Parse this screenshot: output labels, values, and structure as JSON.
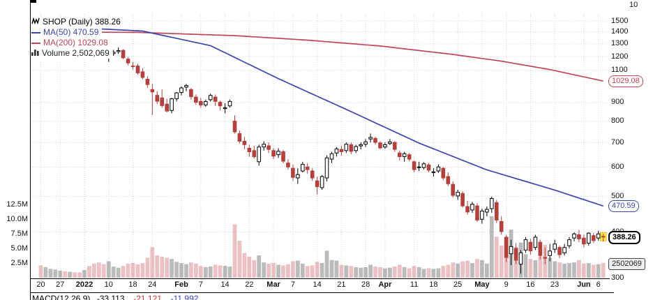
{
  "panel": {
    "top_axis_label": "10"
  },
  "legend": {
    "title": "SHOP (Daily) 388.26",
    "ma50_label": "MA(50) 470.59",
    "ma200_label": "MA(200) 1029.08",
    "volume_label": "Volume 2,502,069"
  },
  "price_labels": {
    "ma200": "1029.08",
    "ma50": "470.59",
    "last": "388.26",
    "volume": "2502069"
  },
  "macd": {
    "label": "MACD(12,26,9)",
    "value1": "-33.113,",
    "value2": "-21.121,",
    "value3": "-11.992"
  },
  "colors": {
    "ma50": "#3a45b0",
    "ma200": "#c0455a",
    "candle_down": "#b4403e",
    "candle_up_fill": "#ffffff",
    "candle_stroke": "#000000",
    "vol_up": "rgba(105,105,105,0.45)",
    "vol_down": "rgba(205,92,105,0.38)",
    "grid": "#d4d4d4",
    "highlight": "#ffe941",
    "macd_v2": "#cc3333",
    "macd_v3": "#3344cc"
  },
  "chart_data": {
    "type": "candlestick",
    "title": "SHOP (Daily) 388.26",
    "symbol": "SHOP",
    "timeframe": "Daily",
    "last_close": 388.26,
    "ma50_value": 470.59,
    "ma200_value": 1029.08,
    "current_volume": 2502069,
    "volume_in_millions": true,
    "y_axis": {
      "scale": "log",
      "ticks": [
        1500,
        1400,
        1300,
        1200,
        1100,
        900,
        800,
        700,
        600,
        500,
        400,
        300
      ]
    },
    "volume_axis": {
      "ticks": [
        {
          "v": 2.5,
          "label": "2.5M"
        },
        {
          "v": 5,
          "label": "5.0M"
        },
        {
          "v": 7.5,
          "label": "7.5M"
        },
        {
          "v": 10,
          "label": "10.0M"
        },
        {
          "v": 12.5,
          "label": "12.5M"
        }
      ]
    },
    "x_ticks": [
      {
        "i": 0,
        "label": "20"
      },
      {
        "i": 4,
        "label": "27"
      },
      {
        "i": 9,
        "label": "2022",
        "bold": true
      },
      {
        "i": 14,
        "label": "10"
      },
      {
        "i": 19,
        "label": "18"
      },
      {
        "i": 23,
        "label": "24"
      },
      {
        "i": 29,
        "label": "Feb",
        "bold": true
      },
      {
        "i": 33,
        "label": "7"
      },
      {
        "i": 38,
        "label": "14"
      },
      {
        "i": 43,
        "label": "22"
      },
      {
        "i": 48,
        "label": "Mar",
        "bold": true
      },
      {
        "i": 52,
        "label": "7"
      },
      {
        "i": 57,
        "label": "14"
      },
      {
        "i": 62,
        "label": "21"
      },
      {
        "i": 67,
        "label": "28"
      },
      {
        "i": 71,
        "label": "Apr",
        "bold": true
      },
      {
        "i": 77,
        "label": "11"
      },
      {
        "i": 81,
        "label": "18"
      },
      {
        "i": 86,
        "label": "25"
      },
      {
        "i": 91,
        "label": "May",
        "bold": true
      },
      {
        "i": 96,
        "label": "9"
      },
      {
        "i": 101,
        "label": "16"
      },
      {
        "i": 106,
        "label": "23"
      },
      {
        "i": 112,
        "label": "Jun",
        "bold": true
      },
      {
        "i": 115,
        "label": "6"
      }
    ],
    "candles": [
      [
        "12/20",
        1305,
        1322,
        1256,
        1292,
        2.1
      ],
      [
        "12/21",
        1296,
        1346,
        1290,
        1338,
        1.8
      ],
      [
        "12/22",
        1340,
        1376,
        1331,
        1368,
        1.5
      ],
      [
        "12/23",
        1370,
        1401,
        1356,
        1393,
        1.4
      ],
      [
        "12/27",
        1396,
        1431,
        1386,
        1416,
        1.2
      ],
      [
        "12/28",
        1418,
        1426,
        1381,
        1392,
        1.1
      ],
      [
        "12/29",
        1392,
        1411,
        1378,
        1401,
        1.0
      ],
      [
        "12/30",
        1401,
        1413,
        1386,
        1396,
        0.9
      ],
      [
        "12/31",
        1396,
        1401,
        1371,
        1377,
        0.9
      ],
      [
        "1/3",
        1382,
        1401,
        1351,
        1383,
        1.3
      ],
      [
        "1/4",
        1386,
        1391,
        1311,
        1346,
        2.0
      ],
      [
        "1/5",
        1340,
        1356,
        1266,
        1272,
        2.4
      ],
      [
        "1/6",
        1261,
        1286,
        1226,
        1251,
        2.6
      ],
      [
        "1/7",
        1256,
        1271,
        1196,
        1211,
        2.3
      ],
      [
        "1/10",
        1196,
        1231,
        1161,
        1223,
        2.8
      ],
      [
        "1/11",
        1223,
        1251,
        1206,
        1233,
        1.9
      ],
      [
        "1/12",
        1238,
        1271,
        1221,
        1246,
        1.7
      ],
      [
        "1/13",
        1248,
        1256,
        1181,
        1191,
        2.0
      ],
      [
        "1/14",
        1181,
        1196,
        1136,
        1153,
        2.4
      ],
      [
        "1/18",
        1131,
        1161,
        1106,
        1126,
        2.5
      ],
      [
        "1/19",
        1131,
        1146,
        1071,
        1083,
        2.3
      ],
      [
        "1/20",
        1091,
        1116,
        1041,
        1053,
        2.5
      ],
      [
        "1/21",
        1041,
        1061,
        986,
        1007,
        3.4
      ],
      [
        "1/24",
        976,
        1011,
        831,
        961,
        5.2
      ],
      [
        "1/25",
        941,
        966,
        891,
        907,
        3.8
      ],
      [
        "1/26",
        926,
        976,
        871,
        883,
        3.6
      ],
      [
        "1/27",
        891,
        921,
        846,
        853,
        3.4
      ],
      [
        "1/28",
        856,
        926,
        841,
        921,
        3.2
      ],
      [
        "1/31",
        921,
        961,
        906,
        956,
        2.7
      ],
      [
        "2/1",
        958,
        996,
        941,
        986,
        2.5
      ],
      [
        "2/2",
        991,
        1011,
        966,
        1001,
        2.3
      ],
      [
        "2/3",
        976,
        986,
        916,
        933,
        2.6
      ],
      [
        "2/4",
        931,
        946,
        886,
        901,
        2.4
      ],
      [
        "2/7",
        906,
        926,
        871,
        886,
        2.0
      ],
      [
        "2/8",
        886,
        916,
        876,
        906,
        1.8
      ],
      [
        "2/9",
        916,
        951,
        906,
        941,
        1.9
      ],
      [
        "2/10",
        931,
        946,
        881,
        906,
        2.2
      ],
      [
        "2/11",
        901,
        911,
        856,
        881,
        2.1
      ],
      [
        "2/14",
        866,
        896,
        841,
        871,
        2.0
      ],
      [
        "2/15",
        881,
        916,
        871,
        906,
        1.9
      ],
      [
        "2/16",
        801,
        831,
        741,
        749,
        9.1
      ],
      [
        "2/17",
        741,
        756,
        696,
        706,
        6.3
      ],
      [
        "2/18",
        706,
        726,
        671,
        691,
        4.2
      ],
      [
        "2/22",
        676,
        691,
        641,
        661,
        3.6
      ],
      [
        "2/23",
        666,
        686,
        633,
        641,
        3.0
      ],
      [
        "2/24",
        621,
        691,
        606,
        681,
        3.8
      ],
      [
        "2/25",
        681,
        706,
        666,
        693,
        2.6
      ],
      [
        "2/28",
        686,
        701,
        656,
        671,
        2.4
      ],
      [
        "3/1",
        666,
        676,
        631,
        643,
        2.5
      ],
      [
        "3/2",
        649,
        676,
        636,
        663,
        2.2
      ],
      [
        "3/3",
        661,
        669,
        616,
        623,
        2.1
      ],
      [
        "3/4",
        616,
        631,
        591,
        601,
        2.3
      ],
      [
        "3/7",
        596,
        611,
        551,
        563,
        2.8
      ],
      [
        "3/8",
        561,
        596,
        541,
        573,
        2.9
      ],
      [
        "3/9",
        586,
        621,
        581,
        611,
        2.4
      ],
      [
        "3/10",
        601,
        616,
        576,
        591,
        2.0
      ],
      [
        "3/11",
        586,
        596,
        551,
        561,
        2.1
      ],
      [
        "3/14",
        551,
        566,
        506,
        531,
        2.7
      ],
      [
        "3/15",
        528,
        571,
        521,
        566,
        2.5
      ],
      [
        "3/16",
        561,
        646,
        549,
        636,
        4.6
      ],
      [
        "3/17",
        631,
        661,
        616,
        653,
        3.0
      ],
      [
        "3/18",
        656,
        681,
        641,
        673,
        2.9
      ],
      [
        "3/21",
        671,
        686,
        646,
        661,
        2.2
      ],
      [
        "3/22",
        666,
        701,
        656,
        693,
        2.1
      ],
      [
        "3/23",
        691,
        701,
        651,
        663,
        2.0
      ],
      [
        "3/24",
        666,
        691,
        656,
        683,
        1.8
      ],
      [
        "3/25",
        686,
        701,
        671,
        691,
        1.7
      ],
      [
        "3/28",
        693,
        716,
        681,
        703,
        1.8
      ],
      [
        "3/29",
        716,
        741,
        701,
        723,
        2.2
      ],
      [
        "3/30",
        719,
        726,
        691,
        701,
        1.9
      ],
      [
        "3/31",
        699,
        706,
        671,
        677,
        1.8
      ],
      [
        "4/1",
        681,
        701,
        673,
        691,
        1.6
      ],
      [
        "4/4",
        696,
        716,
        689,
        703,
        1.7
      ],
      [
        "4/5",
        701,
        706,
        661,
        671,
        1.9
      ],
      [
        "4/6",
        656,
        666,
        626,
        641,
        2.2
      ],
      [
        "4/7",
        641,
        661,
        621,
        653,
        1.8
      ],
      [
        "4/8",
        649,
        656,
        623,
        631,
        1.6
      ],
      [
        "4/11",
        621,
        626,
        581,
        591,
        2.0
      ],
      [
        "4/12",
        599,
        621,
        586,
        601,
        1.8
      ],
      [
        "4/13",
        599,
        619,
        591,
        613,
        1.5
      ],
      [
        "4/14",
        609,
        616,
        581,
        589,
        1.6
      ],
      [
        "4/18",
        581,
        596,
        566,
        583,
        1.5
      ],
      [
        "4/19",
        586,
        611,
        579,
        601,
        1.6
      ],
      [
        "4/20",
        596,
        601,
        553,
        561,
        2.0
      ],
      [
        "4/21",
        566,
        581,
        533,
        541,
        2.2
      ],
      [
        "4/22",
        539,
        549,
        496,
        503,
        2.6
      ],
      [
        "4/25",
        501,
        521,
        489,
        513,
        2.4
      ],
      [
        "4/26",
        509,
        516,
        466,
        471,
        2.8
      ],
      [
        "4/27",
        469,
        486,
        446,
        453,
        2.9
      ],
      [
        "4/28",
        459,
        483,
        451,
        476,
        2.5
      ],
      [
        "4/29",
        471,
        479,
        426,
        431,
        3.2
      ],
      [
        "5/2",
        433,
        463,
        421,
        456,
        3.0
      ],
      [
        "5/3",
        453,
        469,
        441,
        461,
        2.4
      ],
      [
        "5/4",
        463,
        499,
        451,
        493,
        10.5
      ],
      [
        "5/5",
        481,
        489,
        423,
        431,
        7.0
      ],
      [
        "5/6",
        427,
        441,
        393,
        401,
        5.5
      ],
      [
        "5/9",
        387,
        393,
        331,
        341,
        6.5
      ],
      [
        "5/10",
        349,
        381,
        325,
        365,
        8.2
      ],
      [
        "5/11",
        361,
        373,
        327,
        335,
        5.2
      ],
      [
        "5/12",
        327,
        357,
        308,
        351,
        6.0
      ],
      [
        "5/13",
        357,
        387,
        351,
        381,
        4.0
      ],
      [
        "5/16",
        375,
        383,
        347,
        355,
        3.2
      ],
      [
        "5/17",
        363,
        393,
        357,
        387,
        3.0
      ],
      [
        "5/18",
        375,
        381,
        337,
        345,
        3.6
      ],
      [
        "5/19",
        341,
        363,
        327,
        339,
        5.6
      ],
      [
        "5/20",
        345,
        371,
        333,
        355,
        3.4
      ],
      [
        "5/23",
        359,
        381,
        351,
        371,
        2.8
      ],
      [
        "5/24",
        363,
        367,
        339,
        347,
        2.6
      ],
      [
        "5/25",
        351,
        371,
        345,
        363,
        2.4
      ],
      [
        "5/26",
        367,
        387,
        361,
        381,
        2.5
      ],
      [
        "5/27",
        385,
        399,
        377,
        395,
        2.6
      ],
      [
        "5/31",
        393,
        405,
        375,
        383,
        3.0
      ],
      [
        "6/1",
        385,
        393,
        363,
        371,
        2.4
      ],
      [
        "6/2",
        373,
        399,
        367,
        397,
        2.5
      ],
      [
        "6/3",
        391,
        397,
        373,
        379,
        2.2
      ],
      [
        "6/6",
        385,
        403,
        379,
        395,
        2.3
      ],
      [
        "6/7",
        389,
        395,
        377,
        388.26,
        2.5
      ]
    ],
    "ma50_points": [
      [
        0,
        1448
      ],
      [
        10,
        1432
      ],
      [
        21,
        1408
      ],
      [
        35,
        1285
      ],
      [
        49,
        1045
      ],
      [
        64,
        850
      ],
      [
        78,
        698
      ],
      [
        92,
        590
      ],
      [
        106,
        520
      ],
      [
        116,
        470.59
      ]
    ],
    "ma200_points": [
      [
        0,
        1400
      ],
      [
        20,
        1396
      ],
      [
        40,
        1368
      ],
      [
        55,
        1330
      ],
      [
        70,
        1282
      ],
      [
        85,
        1216
      ],
      [
        95,
        1166
      ],
      [
        105,
        1106
      ],
      [
        116,
        1029.08
      ]
    ]
  }
}
